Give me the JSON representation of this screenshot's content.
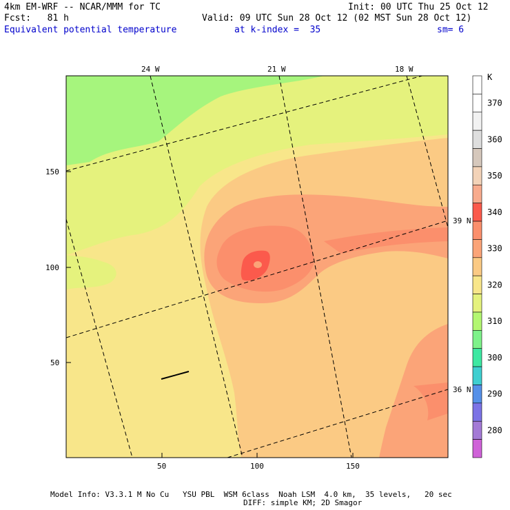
{
  "header": {
    "model_line": "4km EM-WRF -- NCAR/MMM for TC",
    "init": "Init: 00 UTC Thu 25 Oct 12",
    "forecast": "Fcst:   81 h",
    "valid": "Valid: 09 UTC Sun 28 Oct 12 (02 MST Sun 28 Oct 12)",
    "field": "Equivalent potential temperature",
    "level": "at k-index =  35",
    "smoothing": "sm= 6"
  },
  "map": {
    "lon_labels": [
      "24 W",
      "21 W",
      "18 W"
    ],
    "lat_labels": [
      "39 N",
      "36 N"
    ],
    "x_ticks": [
      "50",
      "100",
      "150"
    ],
    "y_ticks": [
      "150",
      "100",
      "50"
    ]
  },
  "colorbar": {
    "unit": "K",
    "levels": [
      {
        "label": "",
        "color": "#ffffff"
      },
      {
        "label": "370",
        "color": "#ffffff"
      },
      {
        "label": "",
        "color": "#f2f2f2"
      },
      {
        "label": "360",
        "color": "#dedede"
      },
      {
        "label": "",
        "color": "#d6c8bc"
      },
      {
        "label": "350",
        "color": "#f3d3b8"
      },
      {
        "label": "",
        "color": "#f8ab8d"
      },
      {
        "label": "340",
        "color": "#fb5a4c"
      },
      {
        "label": "",
        "color": "#fb8f6c"
      },
      {
        "label": "330",
        "color": "#fba478"
      },
      {
        "label": "",
        "color": "#fbca84"
      },
      {
        "label": "320",
        "color": "#f8e68a"
      },
      {
        "label": "",
        "color": "#e5f27d"
      },
      {
        "label": "310",
        "color": "#b3f771"
      },
      {
        "label": "",
        "color": "#7ef28a"
      },
      {
        "label": "300",
        "color": "#3de8a2"
      },
      {
        "label": "",
        "color": "#3fcfd0"
      },
      {
        "label": "290",
        "color": "#5590e8"
      },
      {
        "label": "",
        "color": "#7c73e6"
      },
      {
        "label": "280",
        "color": "#a47ad6"
      },
      {
        "label": "",
        "color": "#cf62d8"
      }
    ]
  },
  "footer": {
    "line1": "Model Info: V3.3.1 M No Cu   YSU PBL  WSM 6class  Noah LSM  4.0 km,  35 levels,   20 sec",
    "line2": "DIFF: simple KM; 2D Smagor"
  },
  "colors": {
    "green_zone": "#a6f57d",
    "yellowgreen_zone": "#e5f27d",
    "yellow_zone": "#f8e68a",
    "orange_light": "#fbca84",
    "orange_mid": "#fba478",
    "orange_dark": "#fb8f6c",
    "red_core": "#fb5a4c"
  }
}
